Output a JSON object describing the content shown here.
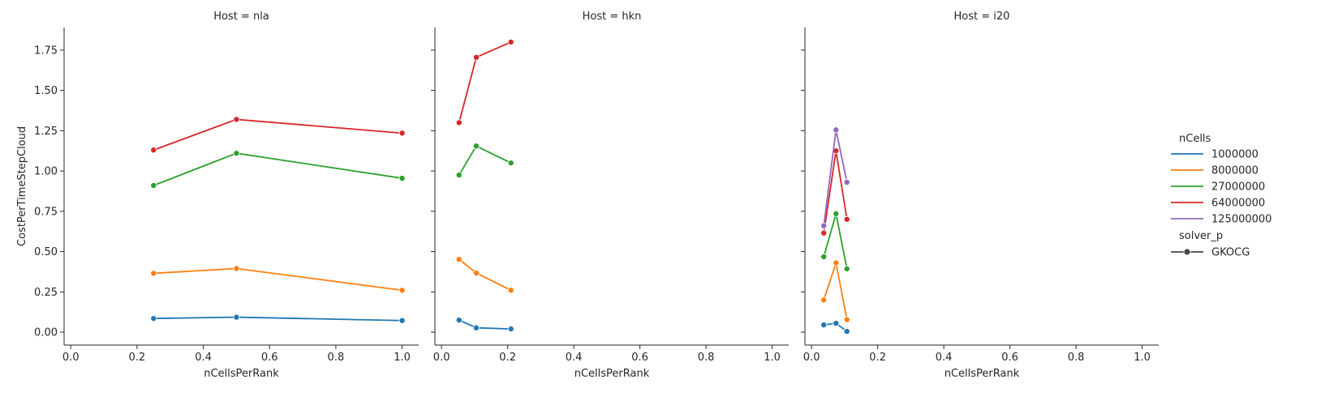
{
  "chart_data": {
    "type": "line",
    "ylabel": "CostPerTimeStepCloud",
    "xlabel": "nCellsPerRank",
    "xlim": [
      -0.02,
      1.05
    ],
    "ylim": [
      -0.08,
      1.89
    ],
    "xticks": [
      "0.0",
      "0.2",
      "0.4",
      "0.6",
      "0.8",
      "1.0"
    ],
    "yticks": [
      "0.00",
      "0.25",
      "0.50",
      "0.75",
      "1.00",
      "1.25",
      "1.50",
      "1.75"
    ],
    "grid": false,
    "legend": {
      "placement": "right",
      "hue_title": "nCells",
      "style_title": "solver_p",
      "style_entries": [
        "GKOCG"
      ]
    },
    "series_colors": [
      "#1f77b4",
      "#ff7f0e",
      "#2ca02c",
      "#d62728",
      "#9467bd"
    ],
    "series_names": [
      "1000000",
      "8000000",
      "27000000",
      "64000000",
      "125000000"
    ],
    "panels": [
      {
        "title": "Host = nla",
        "series": [
          {
            "name": "1000000",
            "x": [
              0.25,
              0.5,
              1.0
            ],
            "y": [
              0.085,
              0.093,
              0.072
            ]
          },
          {
            "name": "8000000",
            "x": [
              0.25,
              0.5,
              1.0
            ],
            "y": [
              0.365,
              0.395,
              0.26
            ]
          },
          {
            "name": "27000000",
            "x": [
              0.25,
              0.5,
              1.0
            ],
            "y": [
              0.91,
              1.11,
              0.955
            ]
          },
          {
            "name": "64000000",
            "x": [
              0.25,
              0.5,
              1.0
            ],
            "y": [
              1.13,
              1.32,
              1.235
            ]
          }
        ]
      },
      {
        "title": "Host = hkn",
        "series": [
          {
            "name": "1000000",
            "x": [
              0.053,
              0.105,
              0.21
            ],
            "y": [
              0.075,
              0.027,
              0.02
            ]
          },
          {
            "name": "8000000",
            "x": [
              0.053,
              0.105,
              0.21
            ],
            "y": [
              0.452,
              0.367,
              0.26
            ]
          },
          {
            "name": "27000000",
            "x": [
              0.053,
              0.105,
              0.21
            ],
            "y": [
              0.975,
              1.155,
              1.05
            ]
          },
          {
            "name": "64000000",
            "x": [
              0.053,
              0.105,
              0.21
            ],
            "y": [
              1.3,
              1.705,
              1.8
            ]
          }
        ]
      },
      {
        "title": "Host = i20",
        "series": [
          {
            "name": "1000000",
            "x": [
              0.037,
              0.074,
              0.107
            ],
            "y": [
              0.045,
              0.055,
              0.005
            ]
          },
          {
            "name": "8000000",
            "x": [
              0.037,
              0.074,
              0.107
            ],
            "y": [
              0.2,
              0.43,
              0.078
            ]
          },
          {
            "name": "27000000",
            "x": [
              0.037,
              0.074,
              0.107
            ],
            "y": [
              0.468,
              0.735,
              0.393
            ]
          },
          {
            "name": "64000000",
            "x": [
              0.037,
              0.074,
              0.107
            ],
            "y": [
              0.615,
              1.125,
              0.7
            ]
          },
          {
            "name": "125000000",
            "x": [
              0.037,
              0.074,
              0.107
            ],
            "y": [
              0.66,
              1.255,
              0.93
            ]
          }
        ]
      }
    ]
  }
}
